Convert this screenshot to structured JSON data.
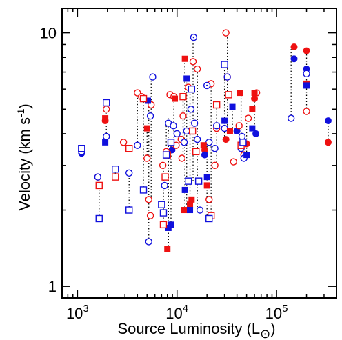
{
  "chart_data": {
    "type": "scatter",
    "xlabel": "Source Luminosity (L",
    "xlabel_symbol": "⊙",
    "xlabel_close": ")",
    "ylabel": "Velocity (km s",
    "ylabel_sup": "-1",
    "ylabel_close": ")",
    "xscale": "log",
    "yscale": "log",
    "xlim": [
      700,
      400000
    ],
    "ylim": [
      0.9,
      12.5
    ],
    "x_ticks": [
      {
        "value": 1000,
        "base": "10",
        "exp": "3"
      },
      {
        "value": 10000,
        "base": "10",
        "exp": "4"
      },
      {
        "value": 100000,
        "base": "10",
        "exp": "5"
      }
    ],
    "y_ticks": [
      {
        "value": 1,
        "label": "1"
      },
      {
        "value": 10,
        "label": "10"
      }
    ],
    "grid": false,
    "legend": "none",
    "colors": {
      "red": "#ee1111",
      "blue": "#1010dd",
      "dotted": "#000000"
    },
    "markers": {
      "filled_circle": "filled-circle",
      "open_circle": "open-circle",
      "filled_square": "filled-square",
      "open_square": "open-square",
      "dotted_circle": "open-circle-with-dot"
    },
    "series": [
      {
        "marker": "filled-circle",
        "color": "red",
        "points": [
          [
            1100,
            3.45
          ],
          [
            19000,
            3.45
          ],
          [
            31000,
            3.8
          ],
          [
            50000,
            3.65
          ],
          [
            60000,
            5.5
          ],
          [
            150000,
            8.8
          ],
          [
            200000,
            8.5
          ],
          [
            330000,
            3.7
          ],
          [
            1900,
            4.5
          ]
        ]
      },
      {
        "marker": "filled-circle",
        "color": "blue",
        "points": [
          [
            1100,
            3.35
          ],
          [
            19000,
            3.3
          ],
          [
            8900,
            3.45
          ],
          [
            40000,
            4.1
          ],
          [
            62000,
            4.0
          ],
          [
            150000,
            7.9
          ],
          [
            200000,
            7.2
          ],
          [
            330000,
            4.5
          ]
        ]
      },
      {
        "marker": "open-circle",
        "color": "red",
        "points": [
          [
            1600,
            2.7
          ],
          [
            1950,
            5.0
          ],
          [
            2900,
            3.7
          ],
          [
            4000,
            5.8
          ],
          [
            4400,
            5.6
          ],
          [
            5000,
            3.2
          ],
          [
            5200,
            2.2
          ],
          [
            5500,
            5.2
          ],
          [
            7800,
            3.4
          ],
          [
            8500,
            5.7
          ],
          [
            9300,
            5.6
          ],
          [
            11000,
            3.8
          ],
          [
            11500,
            4.7
          ],
          [
            11200,
            3.2
          ],
          [
            13000,
            6.1
          ],
          [
            16000,
            7.2
          ],
          [
            22000,
            6.3
          ],
          [
            24000,
            3.0
          ],
          [
            25000,
            4.2
          ],
          [
            31000,
            10.0
          ],
          [
            32000,
            6.7
          ],
          [
            37000,
            3.1
          ],
          [
            47000,
            3.3
          ],
          [
            63000,
            5.8
          ],
          [
            200000,
            4.9
          ],
          [
            42000,
            4.3
          ],
          [
            52000,
            4.6
          ],
          [
            21000,
            2.2
          ],
          [
            14500,
            7.7
          ],
          [
            9800,
            3.6
          ],
          [
            7200,
            3.0
          ],
          [
            5400,
            1.9
          ]
        ]
      },
      {
        "marker": "open-circle",
        "color": "blue",
        "points": [
          [
            1100,
            3.4
          ],
          [
            1950,
            3.9
          ],
          [
            1600,
            2.7
          ],
          [
            3300,
            2.8
          ],
          [
            4000,
            3.6
          ],
          [
            5400,
            4.7
          ],
          [
            5700,
            6.7
          ],
          [
            8200,
            4.4
          ],
          [
            10000,
            4.0
          ],
          [
            11800,
            3.7
          ],
          [
            13800,
            5.0
          ],
          [
            15000,
            4.4
          ],
          [
            16000,
            3.8
          ],
          [
            17000,
            2.0
          ],
          [
            21000,
            3.7
          ],
          [
            24000,
            3.5
          ],
          [
            25000,
            4.3
          ],
          [
            30000,
            4.2
          ],
          [
            32000,
            6.7
          ],
          [
            44000,
            3.5
          ],
          [
            47000,
            3.2
          ],
          [
            7500,
            2.5
          ],
          [
            5200,
            1.5
          ],
          [
            45000,
            3.9
          ],
          [
            140000,
            4.6
          ],
          [
            200000,
            6.9
          ],
          [
            9200,
            4.3
          ],
          [
            12500,
            4.1
          ]
        ]
      },
      {
        "marker": "open-circle-with-dot",
        "color": "blue",
        "points": [
          [
            14700,
            9.6
          ],
          [
            20000,
            6.2
          ]
        ]
      },
      {
        "marker": "filled-square",
        "color": "red",
        "points": [
          [
            1900,
            4.6
          ],
          [
            5000,
            4.2
          ],
          [
            8000,
            1.4
          ],
          [
            9500,
            5.5
          ],
          [
            12000,
            7.9
          ],
          [
            14000,
            2.2
          ],
          [
            18500,
            3.6
          ],
          [
            20000,
            2.5
          ],
          [
            34000,
            4.1
          ],
          [
            43000,
            5.8
          ],
          [
            57000,
            5.0
          ],
          [
            60000,
            5.8
          ],
          [
            200000,
            6.3
          ],
          [
            11800,
            2.0
          ],
          [
            13500,
            2.1
          ]
        ]
      },
      {
        "marker": "filled-square",
        "color": "blue",
        "points": [
          [
            1900,
            3.7
          ],
          [
            5100,
            5.4
          ],
          [
            8200,
            1.7
          ],
          [
            12000,
            2.4
          ],
          [
            12500,
            6.6
          ],
          [
            13500,
            2.0
          ],
          [
            20000,
            2.7
          ],
          [
            30000,
            4.5
          ],
          [
            36000,
            5.1
          ],
          [
            50000,
            3.3
          ],
          [
            57000,
            4.2
          ],
          [
            200000,
            6.2
          ],
          [
            8700,
            1.75
          ]
        ]
      },
      {
        "marker": "open-square",
        "color": "red",
        "points": [
          [
            1650,
            2.5
          ],
          [
            2400,
            2.7
          ],
          [
            3300,
            3.5
          ],
          [
            4600,
            5.5
          ],
          [
            7300,
            1.75
          ],
          [
            7600,
            2.7
          ],
          [
            8000,
            3.3
          ],
          [
            14300,
            4.1
          ],
          [
            15500,
            3.4
          ],
          [
            22000,
            1.9
          ],
          [
            25000,
            5.2
          ],
          [
            33000,
            5.7
          ],
          [
            44000,
            3.6
          ],
          [
            11500,
            5.6
          ]
        ]
      },
      {
        "marker": "open-square",
        "color": "blue",
        "points": [
          [
            1100,
            3.5
          ],
          [
            1650,
            1.85
          ],
          [
            1950,
            5.3
          ],
          [
            2400,
            2.9
          ],
          [
            3300,
            2.0
          ],
          [
            4600,
            2.4
          ],
          [
            7000,
            2.1
          ],
          [
            7300,
            1.95
          ],
          [
            7800,
            3.3
          ],
          [
            13000,
            2.6
          ],
          [
            14000,
            6.0
          ],
          [
            16500,
            2.6
          ],
          [
            21000,
            1.85
          ],
          [
            30000,
            7.5
          ],
          [
            46000,
            3.7
          ],
          [
            8700,
            3.7
          ]
        ]
      },
      {
        "marker": "dotted-line",
        "color": "dotted",
        "segments": [
          [
            1100,
            3.35,
            3.5
          ],
          [
            1650,
            1.85,
            2.7
          ],
          [
            1950,
            3.7,
            5.3
          ],
          [
            2400,
            2.7,
            2.95
          ],
          [
            3300,
            2.0,
            2.85
          ],
          [
            4000,
            3.6,
            5.8
          ],
          [
            4600,
            2.4,
            5.5
          ],
          [
            5000,
            3.2,
            4.2
          ],
          [
            5200,
            1.5,
            5.4
          ],
          [
            5500,
            2.2,
            6.7
          ],
          [
            7300,
            1.75,
            3.0
          ],
          [
            7800,
            3.3,
            4.4
          ],
          [
            8200,
            1.4,
            4.6
          ],
          [
            8700,
            1.7,
            3.7
          ],
          [
            9300,
            3.45,
            5.7
          ],
          [
            11500,
            3.2,
            5.6
          ],
          [
            12000,
            2.0,
            7.9
          ],
          [
            12500,
            2.1,
            6.6
          ],
          [
            13500,
            2.0,
            6.1
          ],
          [
            14500,
            2.6,
            9.6
          ],
          [
            16000,
            2.0,
            7.2
          ],
          [
            20000,
            1.85,
            3.7
          ],
          [
            22000,
            1.9,
            6.3
          ],
          [
            25000,
            3.0,
            5.2
          ],
          [
            30000,
            3.8,
            7.5
          ],
          [
            32000,
            4.2,
            10.0
          ],
          [
            36000,
            4.1,
            5.1
          ],
          [
            44000,
            3.2,
            5.8
          ],
          [
            50000,
            3.3,
            4.6
          ],
          [
            60000,
            4.0,
            5.8
          ],
          [
            200000,
            4.9,
            8.5
          ],
          [
            330000,
            3.7,
            4.5
          ],
          [
            140000,
            4.6,
            8.8
          ]
        ]
      }
    ]
  }
}
